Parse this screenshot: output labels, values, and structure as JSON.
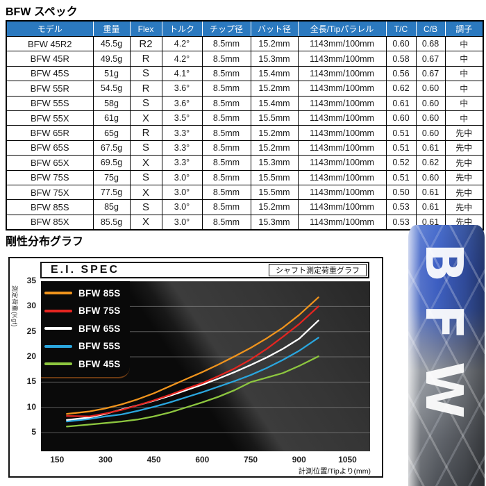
{
  "page": {
    "title": "BFW スペック",
    "graph_section_title": "剛性分布グラフ"
  },
  "table": {
    "header_bg": "#2b79bf",
    "columns": [
      "モデル",
      "重量",
      "Flex",
      "トルク",
      "チップ径",
      "バット径",
      "全長/Tipパラレル",
      "T/C",
      "C/B",
      "調子"
    ],
    "rows": [
      [
        "BFW 45R2",
        "45.5g",
        "R2",
        "4.2°",
        "8.5mm",
        "15.2mm",
        "1143mm/100mm",
        "0.60",
        "0.68",
        "中"
      ],
      [
        "BFW 45R",
        "49.5g",
        "R",
        "4.2°",
        "8.5mm",
        "15.3mm",
        "1143mm/100mm",
        "0.58",
        "0.67",
        "中"
      ],
      [
        "BFW 45S",
        "51g",
        "S",
        "4.1°",
        "8.5mm",
        "15.4mm",
        "1143mm/100mm",
        "0.56",
        "0.67",
        "中"
      ],
      [
        "BFW 55R",
        "54.5g",
        "R",
        "3.6°",
        "8.5mm",
        "15.2mm",
        "1143mm/100mm",
        "0.62",
        "0.60",
        "中"
      ],
      [
        "BFW 55S",
        "58g",
        "S",
        "3.6°",
        "8.5mm",
        "15.4mm",
        "1143mm/100mm",
        "0.61",
        "0.60",
        "中"
      ],
      [
        "BFW 55X",
        "61g",
        "X",
        "3.5°",
        "8.5mm",
        "15.5mm",
        "1143mm/100mm",
        "0.60",
        "0.60",
        "中"
      ],
      [
        "BFW 65R",
        "65g",
        "R",
        "3.3°",
        "8.5mm",
        "15.2mm",
        "1143mm/100mm",
        "0.51",
        "0.60",
        "先中"
      ],
      [
        "BFW 65S",
        "67.5g",
        "S",
        "3.3°",
        "8.5mm",
        "15.2mm",
        "1143mm/100mm",
        "0.51",
        "0.61",
        "先中"
      ],
      [
        "BFW 65X",
        "69.5g",
        "X",
        "3.3°",
        "8.5mm",
        "15.3mm",
        "1143mm/100mm",
        "0.52",
        "0.62",
        "先中"
      ],
      [
        "BFW 75S",
        "75g",
        "S",
        "3.0°",
        "8.5mm",
        "15.5mm",
        "1143mm/100mm",
        "0.51",
        "0.60",
        "先中"
      ],
      [
        "BFW 75X",
        "77.5g",
        "X",
        "3.0°",
        "8.5mm",
        "15.5mm",
        "1143mm/100mm",
        "0.50",
        "0.61",
        "先中"
      ],
      [
        "BFW 85S",
        "85g",
        "S",
        "3.0°",
        "8.5mm",
        "15.2mm",
        "1143mm/100mm",
        "0.53",
        "0.61",
        "先中"
      ],
      [
        "BFW 85X",
        "85.5g",
        "X",
        "3.0°",
        "8.5mm",
        "15.3mm",
        "1143mm/100mm",
        "0.53",
        "0.61",
        "先中"
      ]
    ]
  },
  "chart_data": {
    "type": "line",
    "title": "E.I. SPEC",
    "subtitle": "シャフト測定荷重グラフ",
    "xlabel": "計測位置/Tipより(mm)",
    "ylabel": "測定荷重(Kgf)",
    "x": [
      180,
      250,
      300,
      350,
      400,
      450,
      500,
      550,
      600,
      650,
      700,
      750,
      800,
      850,
      900,
      960
    ],
    "series": [
      {
        "name": "BFW 85S",
        "color": "#f0941d",
        "values": [
          8.7,
          9.2,
          9.8,
          10.6,
          11.6,
          12.8,
          14.2,
          15.6,
          17.0,
          18.5,
          20.1,
          21.8,
          23.7,
          25.8,
          28.3,
          31.8
        ]
      },
      {
        "name": "BFW 75S",
        "color": "#e52520",
        "values": [
          8.3,
          8.2,
          8.8,
          9.5,
          10.4,
          11.4,
          12.5,
          13.7,
          14.8,
          16.2,
          17.7,
          19.5,
          21.6,
          24.0,
          26.5,
          30.0
        ]
      },
      {
        "name": "BFW 65S",
        "color": "#ffffff",
        "values": [
          7.5,
          8.0,
          8.7,
          9.6,
          10.4,
          11.3,
          12.3,
          13.4,
          14.5,
          15.7,
          17.0,
          18.4,
          19.9,
          21.6,
          23.6,
          27.2
        ]
      },
      {
        "name": "BFW 55S",
        "color": "#2aa6de",
        "values": [
          7.2,
          7.7,
          8.2,
          8.6,
          9.3,
          10.1,
          11.0,
          12.0,
          13.0,
          14.1,
          15.2,
          16.4,
          17.8,
          19.4,
          21.2,
          23.8
        ]
      },
      {
        "name": "BFW 45S",
        "color": "#8dc63f",
        "values": [
          6.2,
          6.6,
          6.9,
          7.2,
          7.6,
          8.2,
          9.0,
          10.0,
          11.0,
          12.1,
          13.4,
          15.0,
          15.9,
          16.8,
          18.2,
          20.1
        ]
      }
    ],
    "xticks": [
      150,
      300,
      450,
      600,
      750,
      900,
      1050
    ],
    "yticks": [
      5,
      10,
      15,
      20,
      25,
      30,
      35
    ],
    "xlim": [
      100,
      1120
    ],
    "ylim": [
      1.3,
      35
    ],
    "grid": true,
    "legend_position": "top-left",
    "plot_bg": "#0a0a0a",
    "gridline_color": "#9a9a9a"
  },
  "shaft": {
    "label": "BFW"
  }
}
